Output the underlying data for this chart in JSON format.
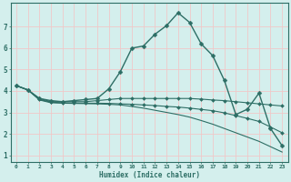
{
  "xlabel": "Humidex (Indice chaleur)",
  "background_color": "#d4efed",
  "grid_color": "#f0c8c8",
  "line_color": "#2d6e65",
  "xlim": [
    -0.5,
    23.5
  ],
  "ylim": [
    0.7,
    8.1
  ],
  "yticks": [
    1,
    2,
    3,
    4,
    5,
    6,
    7
  ],
  "xticks": [
    0,
    1,
    2,
    3,
    4,
    5,
    6,
    7,
    8,
    9,
    10,
    11,
    12,
    13,
    14,
    15,
    16,
    17,
    18,
    19,
    20,
    21,
    22,
    23
  ],
  "series": [
    {
      "x": [
        0,
        1,
        2,
        3,
        4,
        5,
        6,
        7,
        8,
        9,
        10,
        11,
        12,
        13,
        14,
        15,
        16,
        17,
        18,
        19,
        20,
        21,
        22,
        23
      ],
      "y": [
        4.25,
        4.05,
        3.65,
        3.55,
        3.5,
        3.55,
        3.6,
        3.65,
        4.1,
        4.9,
        6.0,
        6.1,
        6.65,
        7.05,
        7.65,
        7.2,
        6.2,
        5.65,
        4.5,
        2.9,
        3.15,
        3.9,
        2.25,
        1.45
      ],
      "color": "#2d6e65",
      "marker": "D",
      "markersize": 2.5,
      "linewidth": 1.0,
      "has_markers": true
    },
    {
      "x": [
        0,
        1,
        2,
        3,
        4,
        5,
        6,
        7,
        8,
        9,
        10,
        11,
        12,
        13,
        14,
        15,
        16,
        17,
        18,
        19,
        20,
        21,
        22,
        23
      ],
      "y": [
        4.25,
        4.05,
        3.65,
        3.5,
        3.5,
        3.5,
        3.5,
        3.55,
        3.6,
        3.65,
        3.65,
        3.65,
        3.65,
        3.65,
        3.65,
        3.65,
        3.62,
        3.58,
        3.55,
        3.5,
        3.45,
        3.4,
        3.35,
        3.3
      ],
      "color": "#2d6e65",
      "marker": "D",
      "markersize": 2.0,
      "linewidth": 0.8,
      "has_markers": true
    },
    {
      "x": [
        0,
        1,
        2,
        3,
        4,
        5,
        6,
        7,
        8,
        9,
        10,
        11,
        12,
        13,
        14,
        15,
        16,
        17,
        18,
        19,
        20,
        21,
        22,
        23
      ],
      "y": [
        4.25,
        4.05,
        3.6,
        3.48,
        3.45,
        3.44,
        3.43,
        3.43,
        3.42,
        3.4,
        3.38,
        3.35,
        3.32,
        3.28,
        3.25,
        3.2,
        3.14,
        3.08,
        2.98,
        2.85,
        2.72,
        2.58,
        2.32,
        2.05
      ],
      "color": "#2d6e65",
      "marker": "D",
      "markersize": 2.0,
      "linewidth": 0.8,
      "has_markers": true
    },
    {
      "x": [
        0,
        1,
        2,
        3,
        4,
        5,
        6,
        7,
        8,
        9,
        10,
        11,
        12,
        13,
        14,
        15,
        16,
        17,
        18,
        19,
        20,
        21,
        22,
        23
      ],
      "y": [
        4.25,
        4.05,
        3.58,
        3.45,
        3.43,
        3.42,
        3.41,
        3.4,
        3.38,
        3.35,
        3.28,
        3.2,
        3.1,
        3.0,
        2.9,
        2.78,
        2.62,
        2.45,
        2.25,
        2.05,
        1.85,
        1.65,
        1.4,
        1.15
      ],
      "color": "#2d6e65",
      "marker": null,
      "markersize": 0,
      "linewidth": 0.8,
      "has_markers": false
    }
  ]
}
